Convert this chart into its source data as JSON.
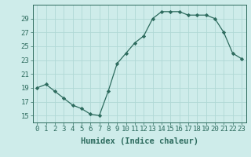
{
  "x": [
    0,
    1,
    2,
    3,
    4,
    5,
    6,
    7,
    8,
    9,
    10,
    11,
    12,
    13,
    14,
    15,
    16,
    17,
    18,
    19,
    20,
    21,
    22,
    23
  ],
  "y": [
    19,
    19.5,
    18.5,
    17.5,
    16.5,
    16,
    15.2,
    15,
    18.5,
    22.5,
    24,
    25.5,
    26.5,
    29,
    30,
    30,
    30,
    29.5,
    29.5,
    29.5,
    29,
    27,
    24,
    23.2
  ],
  "line_color": "#2d6b5e",
  "marker": "D",
  "marker_size": 2.2,
  "bg_color": "#ceecea",
  "grid_color": "#b0d8d5",
  "xlabel": "Humidex (Indice chaleur)",
  "ylim": [
    14,
    31
  ],
  "xlim": [
    -0.5,
    23.5
  ],
  "yticks": [
    15,
    17,
    19,
    21,
    23,
    25,
    27,
    29
  ],
  "xticks": [
    0,
    1,
    2,
    3,
    4,
    5,
    6,
    7,
    8,
    9,
    10,
    11,
    12,
    13,
    14,
    15,
    16,
    17,
    18,
    19,
    20,
    21,
    22,
    23
  ],
  "xtick_labels": [
    "0",
    "1",
    "2",
    "3",
    "4",
    "5",
    "6",
    "7",
    "8",
    "9",
    "10",
    "11",
    "12",
    "13",
    "14",
    "15",
    "16",
    "17",
    "18",
    "19",
    "20",
    "21",
    "22",
    "23"
  ],
  "font_size_xlabel": 7.5,
  "font_size_ticks": 6.5
}
